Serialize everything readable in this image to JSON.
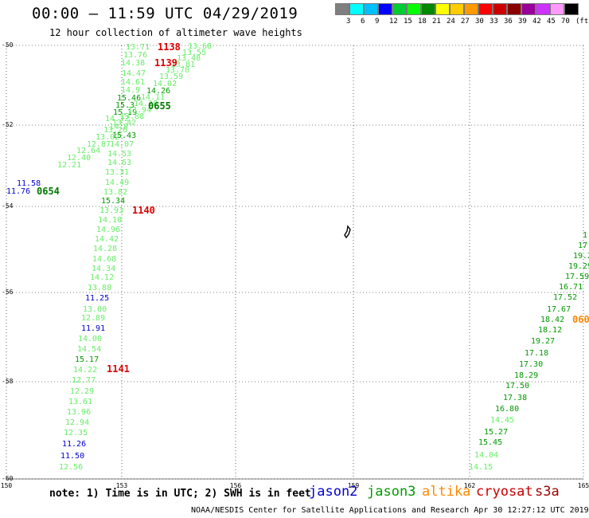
{
  "header": {
    "title": "00:00 – 11:59 UTC 04/29/2019",
    "subtitle": "12 hour collection of altimeter wave heights"
  },
  "colorbar": {
    "colors": [
      "#7f7f7f",
      "#00ffff",
      "#00bfff",
      "#0000ff",
      "#00cc33",
      "#00ff00",
      "#008800",
      "#ffff00",
      "#ffcc00",
      "#ff9900",
      "#ff0000",
      "#cc0000",
      "#880000",
      "#990099",
      "#cc33ff",
      "#ff99ff",
      "#000000"
    ],
    "labels": [
      "3",
      "6",
      "9",
      "12",
      "15",
      "18",
      "21",
      "24",
      "27",
      "30",
      "33",
      "36",
      "39",
      "42",
      "45",
      "70",
      "(ft)"
    ]
  },
  "map": {
    "lat_ticks": [
      "-50",
      "-52",
      "-54",
      "-56",
      "-58",
      "-60"
    ],
    "lon_ticks": [
      "150",
      "153",
      "156",
      "159",
      "162",
      "165"
    ]
  },
  "tracks": {
    "a": [
      {
        "t": "13.71",
        "c": "#66ee66"
      },
      {
        "t": "13.76",
        "c": "#66ee66"
      },
      {
        "t": "14.38",
        "c": "#66ee66"
      },
      {
        "t": "14.47",
        "c": "#66ee66"
      },
      {
        "t": "14.61",
        "c": "#66ee66"
      },
      {
        "t": "14.9",
        "c": "#66ee66"
      },
      {
        "t": "15.46",
        "c": "#009900"
      },
      {
        "t": "15.3",
        "c": "#009900"
      },
      {
        "t": "15.19",
        "c": "#009900"
      },
      {
        "t": "14.32",
        "c": "#66ee66"
      },
      {
        "t": "14.8",
        "c": "#66ee66"
      },
      {
        "t": "15.43",
        "c": "#009900"
      },
      {
        "t": "14.07",
        "c": "#66ee66"
      },
      {
        "t": "14.53",
        "c": "#66ee66"
      },
      {
        "t": "14.63",
        "c": "#66ee66"
      },
      {
        "t": "13.31",
        "c": "#66ee66"
      },
      {
        "t": "14.49",
        "c": "#66ee66"
      },
      {
        "t": "13.82",
        "c": "#66ee66"
      },
      {
        "t": "15.34",
        "c": "#009900"
      },
      {
        "t": "13.93",
        "c": "#66ee66"
      },
      {
        "t": "14.10",
        "c": "#66ee66"
      },
      {
        "t": "14.96",
        "c": "#66ee66"
      },
      {
        "t": "14.42",
        "c": "#66ee66"
      },
      {
        "t": "14.28",
        "c": "#66ee66"
      },
      {
        "t": "14.68",
        "c": "#66ee66"
      },
      {
        "t": "14.34",
        "c": "#66ee66"
      },
      {
        "t": "14.12",
        "c": "#66ee66"
      },
      {
        "t": "13.88",
        "c": "#66ee66"
      },
      {
        "t": "11.25",
        "c": "#0000cc"
      },
      {
        "t": "13.00",
        "c": "#66ee66"
      },
      {
        "t": "12.89",
        "c": "#66ee66"
      },
      {
        "t": "11.91",
        "c": "#0000cc"
      },
      {
        "t": "14.00",
        "c": "#66ee66"
      },
      {
        "t": "14.54",
        "c": "#66ee66"
      },
      {
        "t": "15.17",
        "c": "#009900"
      },
      {
        "t": "14.22",
        "c": "#66ee66"
      },
      {
        "t": "12.77",
        "c": "#66ee66"
      },
      {
        "t": "12.29",
        "c": "#66ee66"
      },
      {
        "t": "13.61",
        "c": "#66ee66"
      },
      {
        "t": "13.96",
        "c": "#66ee66"
      },
      {
        "t": "12.94",
        "c": "#66ee66"
      },
      {
        "t": "12.35",
        "c": "#66ee66"
      },
      {
        "t": "11.26",
        "c": "#0000cc"
      },
      {
        "t": "11.50",
        "c": "#0000cc"
      },
      {
        "t": "12.56",
        "c": "#66ee66"
      }
    ],
    "b": [
      {
        "t": "13.68",
        "c": "#66ee66"
      },
      {
        "t": "13.55",
        "c": "#66ee66"
      },
      {
        "t": "13.48",
        "c": "#66ee66"
      },
      {
        "t": "13.81",
        "c": "#66ee66"
      },
      {
        "t": "13.70",
        "c": "#66ee66"
      },
      {
        "t": "13.59",
        "c": "#66ee66"
      },
      {
        "t": "14.02",
        "c": "#66ee66"
      },
      {
        "t": "14.26",
        "c": "#009900"
      },
      {
        "t": "14.11",
        "c": "#66ee66"
      },
      {
        "t": "14.28",
        "c": "#66ee66"
      },
      {
        "t": "13.94",
        "c": "#66ee66"
      },
      {
        "t": "13.88",
        "c": "#66ee66"
      },
      {
        "t": "13.42",
        "c": "#66ee66"
      },
      {
        "t": "13.26",
        "c": "#66ee66"
      },
      {
        "t": "13.02",
        "c": "#66ee66"
      },
      {
        "t": "12.87",
        "c": "#66ee66"
      },
      {
        "t": "12.64",
        "c": "#66ee66"
      },
      {
        "t": "12.40",
        "c": "#66ee66"
      },
      {
        "t": "12.21",
        "c": "#66ee66"
      },
      {
        "t": "11.58",
        "c": "#0000cc"
      },
      {
        "t": "11.76",
        "c": "#0000cc"
      }
    ],
    "c": [
      {
        "t": "1",
        "c": "#009900"
      },
      {
        "t": "17.",
        "c": "#009900"
      },
      {
        "t": "19.2",
        "c": "#009900"
      },
      {
        "t": "19.29",
        "c": "#009900"
      },
      {
        "t": "17.59",
        "c": "#009900"
      },
      {
        "t": "16.71",
        "c": "#009900"
      },
      {
        "t": "17.52",
        "c": "#009900"
      },
      {
        "t": "17.67",
        "c": "#009900"
      },
      {
        "t": "18.42",
        "c": "#009900"
      },
      {
        "t": "18.12",
        "c": "#009900"
      },
      {
        "t": "19.27",
        "c": "#009900"
      },
      {
        "t": "17.18",
        "c": "#009900"
      },
      {
        "t": "17.30",
        "c": "#009900"
      },
      {
        "t": "18.29",
        "c": "#009900"
      },
      {
        "t": "17.50",
        "c": "#009900"
      },
      {
        "t": "17.38",
        "c": "#009900"
      },
      {
        "t": "16.80",
        "c": "#009900"
      },
      {
        "t": "14.45",
        "c": "#66ee66"
      },
      {
        "t": "15.27",
        "c": "#009900"
      },
      {
        "t": "15.45",
        "c": "#009900"
      },
      {
        "t": "14.04",
        "c": "#66ee66"
      },
      {
        "t": "14.15",
        "c": "#66ee66"
      }
    ]
  },
  "times": [
    {
      "t": "1138",
      "c": "#dd0000"
    },
    {
      "t": "1139",
      "c": "#dd0000"
    },
    {
      "t": "0655",
      "c": "#007700"
    },
    {
      "t": "0654",
      "c": "#007700"
    },
    {
      "t": "1140",
      "c": "#dd0000"
    },
    {
      "t": "1141",
      "c": "#dd0000"
    },
    {
      "t": "060",
      "c": "#ff8800"
    }
  ],
  "footer": {
    "note": "note: 1) Time is in UTC; 2) SWH is in feet",
    "legend": [
      {
        "t": "jason2",
        "c": "#0000cc"
      },
      {
        "t": "jason3",
        "c": "#009900"
      },
      {
        "t": "altika",
        "c": "#ff8800"
      },
      {
        "t": "cryosat",
        "c": "#cc0000"
      },
      {
        "t": "s3a",
        "c": "#990000"
      }
    ],
    "credit": "NOAA/NESDIS Center for Satellite Applications and Research     Apr 30 12:27:12 UTC 2019"
  }
}
